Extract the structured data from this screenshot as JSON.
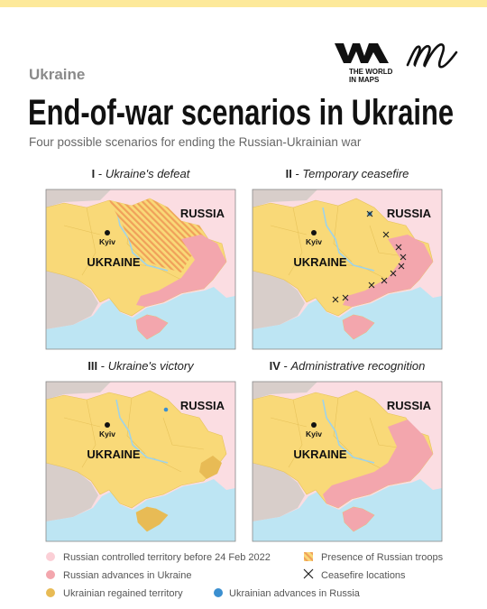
{
  "header": {
    "logo_lines": [
      "THE WORLD",
      "IN MAPS"
    ],
    "kicker": "Ukraine",
    "title": "End-of-war scenarios in Ukraine",
    "subtitle": "Four possible scenarios for ending the Russian-Ukrainian war"
  },
  "title_separator": " - ",
  "panels": [
    {
      "numeral": "I",
      "name": "Ukraine's defeat",
      "country_label": "RUSSIA",
      "capital_label": "Kyiv",
      "ukraine_label": "UKRAINE"
    },
    {
      "numeral": "II",
      "name": "Temporary ceasefire",
      "country_label": "RUSSIA",
      "capital_label": "Kyiv",
      "ukraine_label": "UKRAINE"
    },
    {
      "numeral": "III",
      "name": "Ukraine's victory",
      "country_label": "RUSSIA",
      "capital_label": "Kyiv",
      "ukraine_label": "UKRAINE"
    },
    {
      "numeral": "IV",
      "name": "Administrative recognition",
      "country_label": "RUSSIA",
      "capital_label": "Kyiv",
      "ukraine_label": "UKRAINE"
    }
  ],
  "legend": [
    "Russian controlled territory before 24 Feb 2022",
    "Presence of Russian troops",
    "Russian advances in Ukraine",
    "Ceasefire locations",
    "Ukrainian regained territory",
    "Ukrainian advances in Russia"
  ]
}
